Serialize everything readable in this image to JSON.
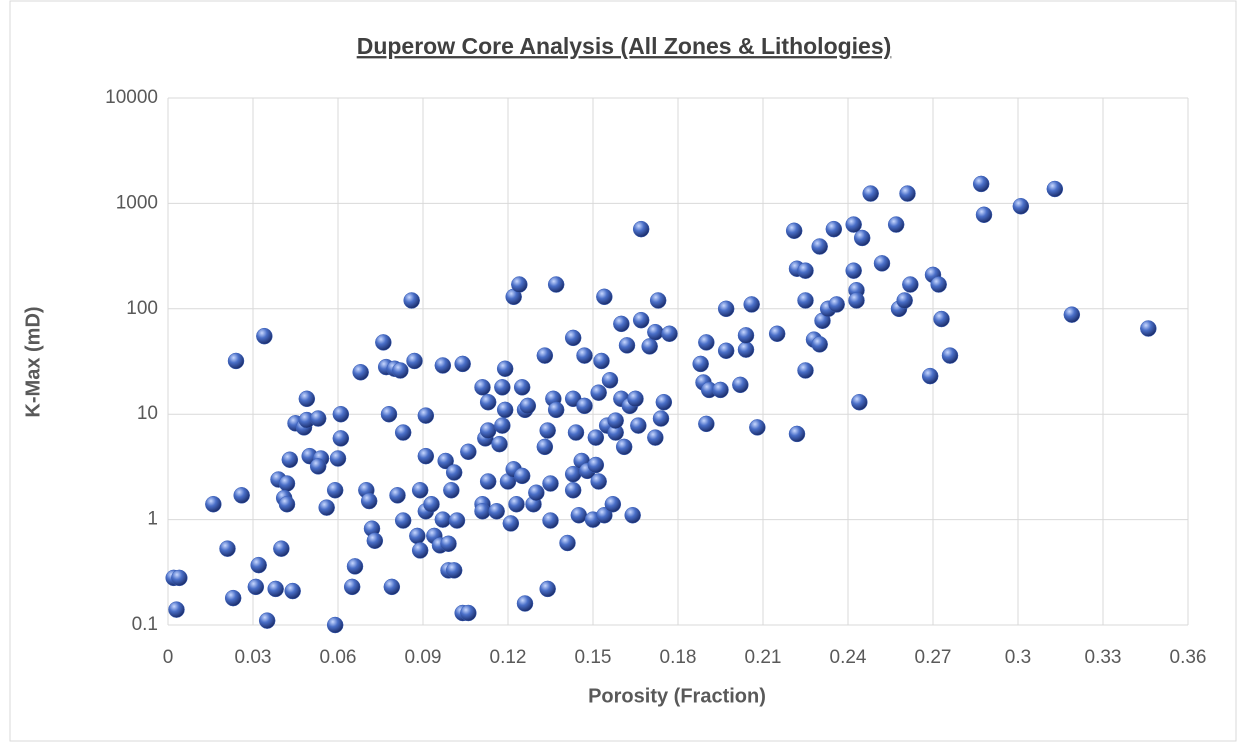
{
  "chart_data": {
    "type": "scatter",
    "title": "Duperow Core Analysis (All Zones & Lithologies)",
    "x_label": "Porosity (Fraction)",
    "y_label": "K-Max (mD)",
    "xlim": [
      0,
      0.36
    ],
    "xticks": [
      0,
      0.03,
      0.06,
      0.09,
      0.12,
      0.15,
      0.18,
      0.21,
      0.24,
      0.27,
      0.3,
      0.33,
      0.36
    ],
    "ylim": [
      0.1,
      10000
    ],
    "yticks": [
      0.1,
      1,
      10,
      100,
      1000,
      10000
    ],
    "y_log": true,
    "grid": true,
    "color": "#3a5fb8",
    "x": [
      0.002,
      0.004,
      0.003,
      0.016,
      0.021,
      0.024,
      0.026,
      0.023,
      0.031,
      0.032,
      0.034,
      0.035,
      0.038,
      0.039,
      0.04,
      0.042,
      0.041,
      0.042,
      0.043,
      0.044,
      0.045,
      0.048,
      0.049,
      0.049,
      0.05,
      0.053,
      0.054,
      0.053,
      0.056,
      0.059,
      0.059,
      0.06,
      0.061,
      0.061,
      0.065,
      0.066,
      0.068,
      0.07,
      0.071,
      0.072,
      0.073,
      0.076,
      0.077,
      0.078,
      0.079,
      0.08,
      0.081,
      0.082,
      0.083,
      0.083,
      0.086,
      0.087,
      0.088,
      0.089,
      0.089,
      0.091,
      0.091,
      0.091,
      0.093,
      0.094,
      0.096,
      0.097,
      0.097,
      0.098,
      0.099,
      0.099,
      0.1,
      0.101,
      0.101,
      0.102,
      0.104,
      0.104,
      0.106,
      0.106,
      0.111,
      0.111,
      0.111,
      0.112,
      0.113,
      0.113,
      0.113,
      0.116,
      0.117,
      0.118,
      0.118,
      0.119,
      0.119,
      0.12,
      0.121,
      0.122,
      0.122,
      0.123,
      0.124,
      0.125,
      0.125,
      0.126,
      0.126,
      0.127,
      0.129,
      0.13,
      0.133,
      0.133,
      0.134,
      0.134,
      0.135,
      0.135,
      0.136,
      0.137,
      0.137,
      0.141,
      0.143,
      0.143,
      0.143,
      0.143,
      0.144,
      0.145,
      0.146,
      0.147,
      0.147,
      0.148,
      0.15,
      0.151,
      0.151,
      0.152,
      0.152,
      0.153,
      0.154,
      0.154,
      0.155,
      0.156,
      0.157,
      0.158,
      0.158,
      0.16,
      0.16,
      0.161,
      0.162,
      0.163,
      0.164,
      0.165,
      0.166,
      0.167,
      0.167,
      0.17,
      0.172,
      0.172,
      0.173,
      0.174,
      0.175,
      0.177,
      0.188,
      0.189,
      0.19,
      0.19,
      0.191,
      0.195,
      0.197,
      0.197,
      0.202,
      0.204,
      0.204,
      0.206,
      0.208,
      0.215,
      0.221,
      0.222,
      0.222,
      0.225,
      0.225,
      0.225,
      0.228,
      0.23,
      0.23,
      0.231,
      0.233,
      0.235,
      0.236,
      0.242,
      0.242,
      0.243,
      0.243,
      0.244,
      0.245,
      0.248,
      0.252,
      0.257,
      0.258,
      0.26,
      0.261,
      0.262,
      0.269,
      0.27,
      0.272,
      0.273,
      0.276,
      0.287,
      0.288,
      0.301,
      0.313,
      0.319,
      0.346
    ],
    "values": [
      0.28,
      0.28,
      0.14,
      1.4,
      0.53,
      32,
      1.7,
      0.18,
      0.23,
      0.37,
      55,
      0.11,
      0.22,
      2.4,
      0.53,
      2.2,
      1.6,
      1.4,
      3.7,
      0.21,
      8.2,
      7.5,
      14,
      8.8,
      4.0,
      9.1,
      3.8,
      3.2,
      1.3,
      1.9,
      0.1,
      3.8,
      5.9,
      10,
      0.23,
      0.36,
      25,
      1.9,
      1.5,
      0.82,
      0.63,
      48,
      28,
      10,
      0.23,
      27,
      1.7,
      26,
      0.98,
      6.7,
      120,
      32,
      0.7,
      0.51,
      1.9,
      4.0,
      9.7,
      1.2,
      1.4,
      0.7,
      0.57,
      29,
      1.0,
      3.6,
      0.33,
      0.59,
      1.9,
      0.33,
      2.8,
      0.98,
      30,
      0.13,
      0.13,
      4.4,
      18,
      1.4,
      1.2,
      5.9,
      13,
      2.3,
      7.0,
      1.2,
      5.2,
      18,
      7.8,
      27,
      11,
      2.3,
      0.92,
      3.0,
      130,
      1.4,
      170,
      2.6,
      18,
      11,
      0.16,
      12,
      1.4,
      1.8,
      36,
      4.9,
      7.0,
      0.22,
      0.98,
      2.2,
      14,
      11,
      170,
      0.6,
      53,
      14,
      2.7,
      1.9,
      6.7,
      1.1,
      3.6,
      36,
      12,
      2.9,
      1.0,
      3.3,
      6.0,
      2.3,
      16,
      32,
      1.1,
      130,
      7.8,
      21,
      1.4,
      6.7,
      8.7,
      72,
      14,
      4.9,
      45,
      12,
      1.1,
      14,
      7.8,
      570,
      78,
      44,
      60,
      6.0,
      120,
      9.1,
      13,
      58,
      30,
      20,
      48,
      8.1,
      17,
      17,
      100,
      40,
      19,
      41,
      56,
      110,
      7.5,
      58,
      550,
      6.5,
      240,
      230,
      26,
      120,
      51,
      390,
      46,
      77,
      100,
      570,
      110,
      230,
      630,
      150,
      120,
      13,
      470,
      1240,
      270,
      630,
      100,
      120,
      1240,
      170,
      23,
      210,
      170,
      80,
      36,
      1530,
      780,
      940,
      1370,
      88,
      65
    ]
  }
}
